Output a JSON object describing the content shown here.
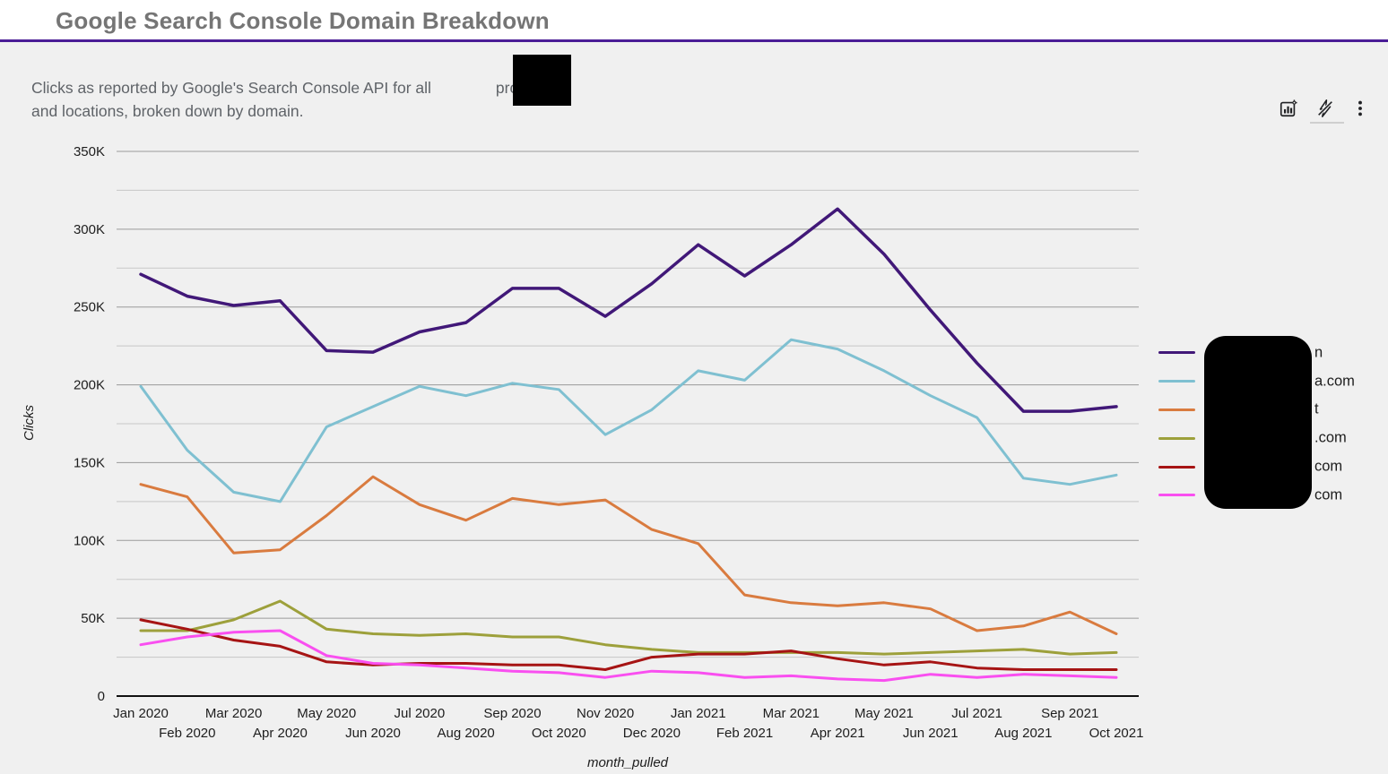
{
  "header": {
    "title": "Google Search Console Domain Breakdown",
    "subtitle_line1_pre": "Clicks as reported by Google's Search Console API for all",
    "subtitle_line1_post": "properties",
    "subtitle_line2": "and locations, broken down by domain.",
    "toolbar_icons": [
      "chart-options-icon",
      "lightning-off-icon",
      "kebab-menu-icon"
    ]
  },
  "chart_data": {
    "type": "line",
    "title": "Google Search Console Domain Breakdown",
    "xlabel": "month_pulled",
    "ylabel": "Clicks",
    "ylim": [
      0,
      350000
    ],
    "y_ticks": [
      "0",
      "50K",
      "100K",
      "150K",
      "200K",
      "250K",
      "300K",
      "350K"
    ],
    "grid": true,
    "legend_position": "right",
    "x": [
      "Jan 2020",
      "Feb 2020",
      "Mar 2020",
      "Apr 2020",
      "May 2020",
      "Jun 2020",
      "Jul 2020",
      "Aug 2020",
      "Sep 2020",
      "Oct 2020",
      "Nov 2020",
      "Dec 2020",
      "Jan 2021",
      "Feb 2021",
      "Mar 2021",
      "Apr 2021",
      "May 2021",
      "Jun 2021",
      "Jul 2021",
      "Aug 2021",
      "Sep 2021",
      "Oct 2021"
    ],
    "series": [
      {
        "label_visible_suffix": "n",
        "color": "#411878",
        "values": [
          271000,
          257000,
          251000,
          254000,
          222000,
          221000,
          234000,
          240000,
          262000,
          262000,
          244000,
          265000,
          290000,
          270000,
          290000,
          313000,
          284000,
          248000,
          214000,
          183000,
          183000,
          186000
        ]
      },
      {
        "label_visible_suffix": "a.com",
        "color": "#7fc0d1",
        "values": [
          199000,
          158000,
          131000,
          125000,
          173000,
          186000,
          199000,
          193000,
          201000,
          197000,
          168000,
          184000,
          209000,
          203000,
          229000,
          223000,
          209000,
          193000,
          179000,
          140000,
          136000,
          142000
        ]
      },
      {
        "label_visible_suffix": "t",
        "color": "#d97b3f",
        "values": [
          136000,
          128000,
          92000,
          94000,
          116000,
          141000,
          123000,
          113000,
          127000,
          123000,
          126000,
          107000,
          98000,
          65000,
          60000,
          58000,
          60000,
          56000,
          42000,
          45000,
          54000,
          40000
        ]
      },
      {
        "label_visible_suffix": ".com",
        "color": "#9da03b",
        "values": [
          42000,
          42000,
          49000,
          61000,
          43000,
          40000,
          39000,
          40000,
          38000,
          38000,
          33000,
          30000,
          28000,
          28000,
          28000,
          28000,
          27000,
          28000,
          29000,
          30000,
          27000,
          28000
        ]
      },
      {
        "label_visible_suffix": "com",
        "color": "#a61414",
        "values": [
          49000,
          43000,
          36000,
          32000,
          22000,
          20000,
          21000,
          21000,
          20000,
          20000,
          17000,
          25000,
          27000,
          27000,
          29000,
          24000,
          20000,
          22000,
          18000,
          17000,
          17000,
          17000
        ]
      },
      {
        "label_visible_suffix": "com",
        "color": "#f94ff0",
        "values": [
          33000,
          38000,
          41000,
          42000,
          26000,
          21000,
          20000,
          18000,
          16000,
          15000,
          12000,
          16000,
          15000,
          12000,
          13000,
          11000,
          10000,
          14000,
          12000,
          14000,
          13000,
          12000
        ]
      }
    ]
  },
  "legend": {
    "redacted": true,
    "items": [
      {
        "visible_text": "n",
        "color": "#411878"
      },
      {
        "visible_text": "a.com",
        "color": "#7fc0d1"
      },
      {
        "visible_text": "t",
        "color": "#d97b3f"
      },
      {
        "visible_text": ".com",
        "color": "#9da03b"
      },
      {
        "visible_text": "com",
        "color": "#a61414"
      },
      {
        "visible_text": "com",
        "color": "#f94ff0"
      }
    ]
  }
}
